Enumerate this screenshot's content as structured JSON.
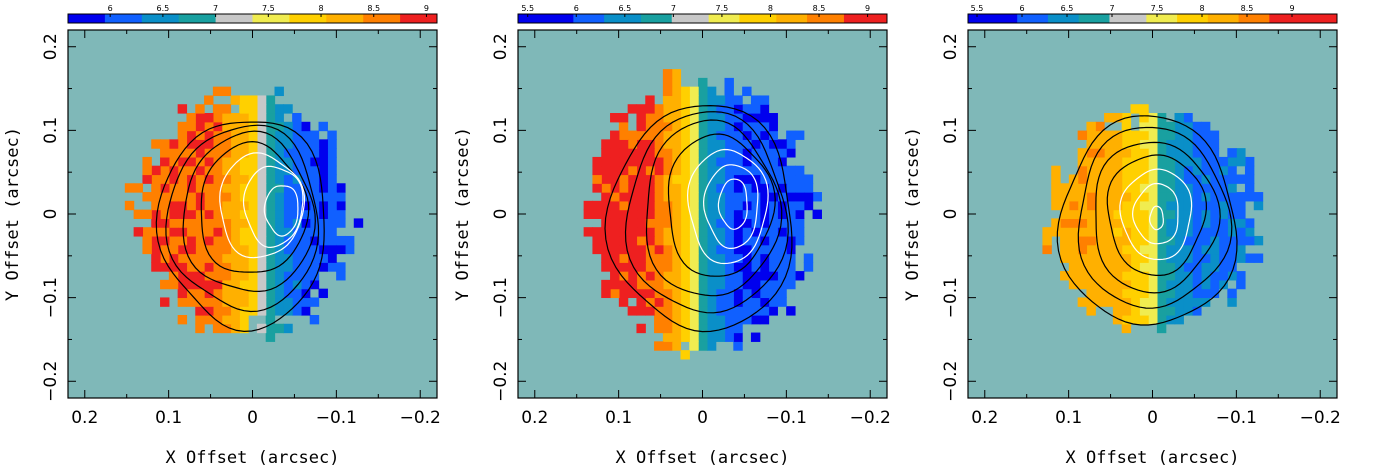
{
  "colors": {
    "background_field": "#7fb8b8",
    "colormap": [
      "#0000ee",
      "#1060ff",
      "#0a8fc8",
      "#19a0a0",
      "#c8c8c8",
      "#f0ec50",
      "#ffd000",
      "#ffb000",
      "#ff8000",
      "#ee2020"
    ],
    "contour_outer": "#000000",
    "contour_inner": "#ffffff"
  },
  "chart_data": [
    {
      "type": "heatmap",
      "xlabel": "X Offset (arcsec)",
      "ylabel": "Y Offset (arcsec)",
      "xlim": [
        0.22,
        -0.22
      ],
      "ylim": [
        -0.22,
        0.22
      ],
      "x_ticks": [
        0.2,
        0.1,
        0,
        -0.1,
        -0.2
      ],
      "x_tick_labels": [
        "0.2",
        "0.1",
        "0",
        "−0.1",
        "−0.2"
      ],
      "y_ticks": [
        -0.2,
        -0.1,
        0,
        0.1,
        0.2
      ],
      "y_tick_labels": [
        "−0.2",
        "−0.1",
        "0",
        "0.1",
        "0.2"
      ],
      "colorbar": {
        "range": [
          5.6,
          9.1
        ],
        "ticks": [
          6,
          6.5,
          7,
          7.5,
          8,
          8.5,
          9
        ],
        "tick_labels": [
          "6",
          "6.5",
          "7",
          "7.5",
          "8",
          "8.5",
          "9"
        ]
      },
      "map": {
        "center": [
          0.005,
          0.0
        ],
        "rx_left": 0.13,
        "rx_right": 0.12,
        "ry_top": 0.14,
        "ry_bottom": 0.14,
        "transition_x": -0.01,
        "red_side": "left",
        "v_min": 6.0,
        "v_max": 8.7,
        "v_mid": 7.4
      },
      "contours": [
        {
          "level": 1,
          "center": [
            0.01,
            -0.01
          ],
          "rx": 0.1,
          "ry": 0.125,
          "color": "black"
        },
        {
          "level": 2,
          "center": [
            0.01,
            -0.005
          ],
          "rx": 0.09,
          "ry": 0.11,
          "color": "black"
        },
        {
          "level": 3,
          "center": [
            0.005,
            0.0
          ],
          "rx": 0.078,
          "ry": 0.095,
          "color": "black"
        },
        {
          "level": 4,
          "center": [
            0.0,
            0.005
          ],
          "rx": 0.064,
          "ry": 0.078,
          "color": "black"
        },
        {
          "level": 5,
          "center": [
            -0.01,
            0.01
          ],
          "rx": 0.05,
          "ry": 0.062,
          "color": "white"
        },
        {
          "level": 6,
          "center": [
            -0.025,
            0.01
          ],
          "rx": 0.035,
          "ry": 0.048,
          "color": "white"
        },
        {
          "level": 7,
          "center": [
            -0.035,
            0.005
          ],
          "rx": 0.02,
          "ry": 0.03,
          "color": "white"
        }
      ]
    },
    {
      "type": "heatmap",
      "xlabel": "X Offset (arcsec)",
      "ylabel": "Y Offset (arcsec)",
      "xlim": [
        0.22,
        -0.22
      ],
      "ylim": [
        -0.22,
        0.22
      ],
      "x_ticks": [
        0.2,
        0.1,
        0,
        -0.1,
        -0.2
      ],
      "x_tick_labels": [
        "0.2",
        "0.1",
        "0",
        "−0.1",
        "−0.2"
      ],
      "y_ticks": [
        -0.2,
        -0.1,
        0,
        0.1,
        0.2
      ],
      "y_tick_labels": [
        "−0.2",
        "−0.1",
        "0",
        "0.1",
        "0.2"
      ],
      "colorbar": {
        "range": [
          5.4,
          9.2
        ],
        "ticks": [
          5.5,
          6,
          6.5,
          7,
          7.5,
          8,
          8.5,
          9
        ],
        "tick_labels": [
          "5.5",
          "6",
          "6.5",
          "7",
          "7.5",
          "8",
          "8.5",
          "9"
        ]
      },
      "map": {
        "center": [
          0.0,
          0.0
        ],
        "rx_left": 0.13,
        "rx_right": 0.13,
        "ry_top": 0.16,
        "ry_bottom": 0.16,
        "transition_x": 0.01,
        "red_side": "left",
        "v_min": 6.0,
        "v_max": 8.9,
        "v_mid": 7.3
      },
      "contours": [
        {
          "level": 1,
          "center": [
            0.0,
            -0.005
          ],
          "rx": 0.11,
          "ry": 0.135,
          "color": "black"
        },
        {
          "level": 2,
          "center": [
            -0.005,
            0.0
          ],
          "rx": 0.095,
          "ry": 0.12,
          "color": "black"
        },
        {
          "level": 3,
          "center": [
            -0.01,
            0.005
          ],
          "rx": 0.08,
          "ry": 0.105,
          "color": "black"
        },
        {
          "level": 4,
          "center": [
            -0.02,
            0.01
          ],
          "rx": 0.063,
          "ry": 0.085,
          "color": "black"
        },
        {
          "level": 5,
          "center": [
            -0.03,
            0.01
          ],
          "rx": 0.047,
          "ry": 0.068,
          "color": "white"
        },
        {
          "level": 6,
          "center": [
            -0.035,
            0.01
          ],
          "rx": 0.032,
          "ry": 0.05,
          "color": "white"
        },
        {
          "level": 7,
          "center": [
            -0.037,
            0.012
          ],
          "rx": 0.017,
          "ry": 0.03,
          "color": "white"
        }
      ]
    },
    {
      "type": "heatmap",
      "xlabel": "X Offset (arcsec)",
      "ylabel": "Y Offset (arcsec)",
      "xlim": [
        0.22,
        -0.22
      ],
      "ylim": [
        -0.22,
        0.22
      ],
      "x_ticks": [
        0.2,
        0.1,
        0,
        -0.1,
        -0.2
      ],
      "x_tick_labels": [
        "0.2",
        "0.1",
        "0",
        "−0.1",
        "−0.2"
      ],
      "y_ticks": [
        -0.2,
        -0.1,
        0,
        0.1,
        0.2
      ],
      "y_tick_labels": [
        "−0.2",
        "−0.1",
        "0",
        "0.1",
        "0.2"
      ],
      "colorbar": {
        "range": [
          5.4,
          9.5
        ],
        "ticks": [
          5.5,
          6,
          6.5,
          7,
          7.5,
          8,
          8.5,
          9
        ],
        "tick_labels": [
          "5.5",
          "6",
          "6.5",
          "7",
          "7.5",
          "8",
          "8.5",
          "9"
        ]
      },
      "map": {
        "center": [
          0.0,
          -0.01
        ],
        "rx_left": 0.125,
        "rx_right": 0.125,
        "ry_top": 0.125,
        "ry_bottom": 0.125,
        "transition_x": 0.0,
        "red_side": "left",
        "v_min": 6.2,
        "v_max": 8.3,
        "v_mid": 7.4
      },
      "contours": [
        {
          "level": 1,
          "center": [
            0.005,
            -0.01
          ],
          "rx": 0.105,
          "ry": 0.125,
          "color": "black"
        },
        {
          "level": 2,
          "center": [
            0.0,
            -0.005
          ],
          "rx": 0.09,
          "ry": 0.108,
          "color": "black"
        },
        {
          "level": 3,
          "center": [
            -0.002,
            -0.003
          ],
          "rx": 0.074,
          "ry": 0.09,
          "color": "black"
        },
        {
          "level": 4,
          "center": [
            -0.004,
            0.0
          ],
          "rx": 0.058,
          "ry": 0.072,
          "color": "black"
        },
        {
          "level": 5,
          "center": [
            -0.005,
            0.0
          ],
          "rx": 0.042,
          "ry": 0.054,
          "color": "white"
        },
        {
          "level": 6,
          "center": [
            -0.005,
            0.0
          ],
          "rx": 0.027,
          "ry": 0.036,
          "color": "white"
        },
        {
          "level": 7,
          "center": [
            -0.005,
            -0.005
          ],
          "rx": 0.008,
          "ry": 0.014,
          "color": "white"
        }
      ]
    }
  ]
}
